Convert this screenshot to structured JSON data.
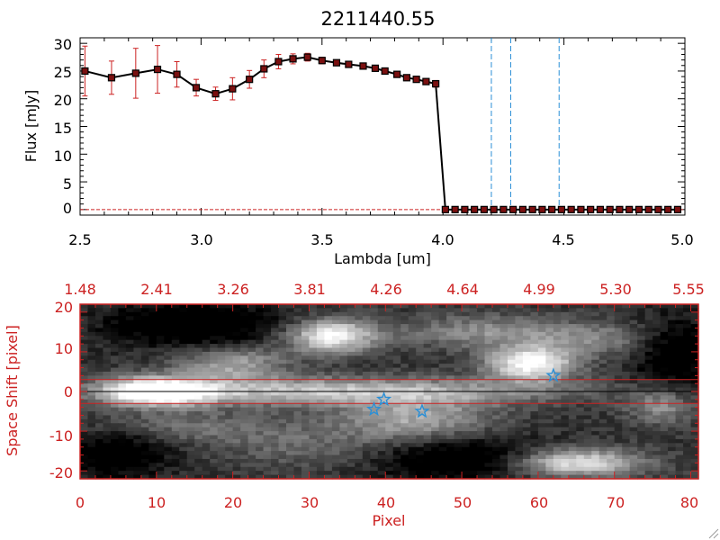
{
  "chart_data": [
    {
      "type": "line",
      "title": "2211440.55",
      "xlabel": "Lambda [um]",
      "ylabel": "Flux [mJy]",
      "xlim": [
        2.5,
        5.0
      ],
      "ylim": [
        -1,
        31
      ],
      "x_ticks": [
        "2.5",
        "3.0",
        "3.5",
        "4.0",
        "4.5",
        "5.0"
      ],
      "y_ticks": [
        "0",
        "5",
        "10",
        "15",
        "20",
        "25",
        "30"
      ],
      "grid": false,
      "colors": {
        "line": "#000000",
        "marker": "#7a1010",
        "errorbar": "#cc2222",
        "vlines": "#2a8fd6"
      },
      "series": [
        {
          "x": [
            2.52,
            2.63,
            2.73,
            2.82,
            2.9,
            2.98,
            3.06,
            3.13,
            3.2,
            3.26,
            3.32,
            3.38,
            3.44,
            3.5,
            3.56,
            3.61,
            3.67,
            3.72,
            3.76,
            3.81,
            3.85,
            3.89,
            3.93,
            3.97,
            4.01,
            4.05,
            4.09,
            4.13,
            4.17,
            4.21,
            4.25,
            4.29,
            4.33,
            4.37,
            4.41,
            4.45,
            4.49,
            4.53,
            4.57,
            4.61,
            4.65,
            4.69,
            4.73,
            4.77,
            4.81,
            4.85,
            4.89,
            4.93,
            4.97
          ],
          "y": [
            25.0,
            23.8,
            24.6,
            25.3,
            24.4,
            22.0,
            20.9,
            21.8,
            23.5,
            25.4,
            26.7,
            27.2,
            27.5,
            26.9,
            26.5,
            26.2,
            25.9,
            25.5,
            25.0,
            24.4,
            23.8,
            23.5,
            23.1,
            22.7,
            0,
            0,
            0,
            0,
            0,
            0,
            0,
            0,
            0,
            0,
            0,
            0,
            0,
            0,
            0,
            0,
            0,
            0,
            0,
            0,
            0,
            0,
            0,
            0,
            0
          ],
          "yerr": [
            4.5,
            3.0,
            4.5,
            4.3,
            2.3,
            1.5,
            1.2,
            2.0,
            1.6,
            1.6,
            1.3,
            0.9,
            0.7,
            0.6,
            0.5,
            0.5,
            0.5,
            0.5,
            0.5,
            0.5,
            0.5,
            0.5,
            0.5,
            0.6,
            0.3,
            0.3,
            0.3,
            0.3,
            0.3,
            0.3,
            0.3,
            0.3,
            0.3,
            0.3,
            0.3,
            0.3,
            0.3,
            0.3,
            0.3,
            0.3,
            0.3,
            0.3,
            0.3,
            0.3,
            0.3,
            0.3,
            0.3,
            0.3,
            0.3
          ]
        }
      ],
      "vlines": [
        4.2,
        4.28,
        4.48
      ],
      "hline_y": 0
    },
    {
      "type": "heatmap",
      "xlabel": "Pixel",
      "ylabel": "Space Shift [pixel]",
      "xlim": [
        0,
        81
      ],
      "ylim": [
        -22,
        22
      ],
      "x_ticks": [
        "0",
        "10",
        "20",
        "30",
        "40",
        "50",
        "60",
        "70",
        "80"
      ],
      "y_ticks": [
        "-20",
        "-10",
        "0",
        "10",
        "20"
      ],
      "top_ticks": [
        "1.48",
        "2.41",
        "3.26",
        "3.81",
        "4.26",
        "4.64",
        "4.99",
        "5.30",
        "5.55"
      ],
      "colormap": "grayscale",
      "colors": {
        "axes": "#cc2222",
        "stars": "#2a8fd6",
        "center_line": "#000000",
        "bounds": "#cc2222"
      },
      "aperture_bounds": [
        3,
        -3
      ],
      "center_line": 0,
      "bright_regions": [
        {
          "x": 10,
          "y": 0,
          "sx": 5,
          "sy": 2.5,
          "v": 0.95
        },
        {
          "x": 25,
          "y": 0,
          "sx": 15,
          "sy": 2.5,
          "v": 0.45
        },
        {
          "x": 48,
          "y": 0,
          "sx": 15,
          "sy": 2.5,
          "v": 0.3
        },
        {
          "x": 33,
          "y": 14,
          "sx": 4,
          "sy": 3,
          "v": 0.8
        },
        {
          "x": 20,
          "y": 7,
          "sx": 5,
          "sy": 3,
          "v": 0.45
        },
        {
          "x": 59,
          "y": 7,
          "sx": 4,
          "sy": 3,
          "v": 0.85
        },
        {
          "x": 68,
          "y": 13,
          "sx": 6,
          "sy": 3,
          "v": 0.3
        },
        {
          "x": 44,
          "y": -7,
          "sx": 7,
          "sy": 4,
          "v": 0.45
        },
        {
          "x": 65,
          "y": -18,
          "sx": 6,
          "sy": 2.5,
          "v": 0.75
        },
        {
          "x": 12,
          "y": -9,
          "sx": 10,
          "sy": 3,
          "v": 0.25
        },
        {
          "x": 53,
          "y": 15,
          "sx": 8,
          "sy": 3,
          "v": 0.35
        },
        {
          "x": 76,
          "y": -4,
          "sx": 3,
          "sy": 3,
          "v": 0.35
        },
        {
          "x": 30,
          "y": -14,
          "sx": 8,
          "sy": 4,
          "v": 0.2
        }
      ],
      "dark_regions": [
        {
          "x": 15,
          "y": 17,
          "sx": 8,
          "sy": 4,
          "v": 0.4
        },
        {
          "x": 50,
          "y": -17,
          "sx": 8,
          "sy": 4,
          "v": 0.4
        },
        {
          "x": 5,
          "y": -15,
          "sx": 5,
          "sy": 5,
          "v": 0.35
        },
        {
          "x": 78,
          "y": 10,
          "sx": 4,
          "sy": 6,
          "v": 0.35
        }
      ],
      "stars": [
        {
          "x": 38.5,
          "y": -4.5
        },
        {
          "x": 39.8,
          "y": -2
        },
        {
          "x": 44.8,
          "y": -5
        },
        {
          "x": 62,
          "y": 4
        }
      ]
    }
  ]
}
